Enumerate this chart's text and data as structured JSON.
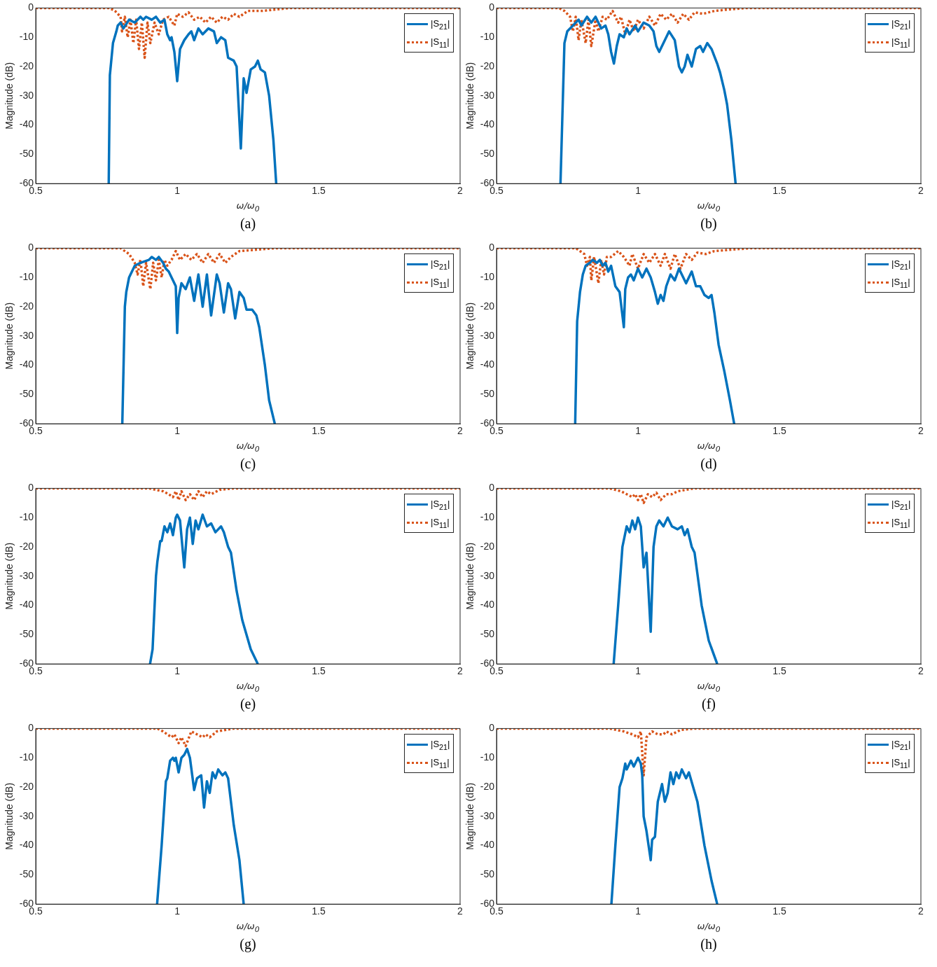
{
  "chart_data": [
    {
      "type": "line",
      "xlabel": "ω/ω$_{0}$",
      "ylabel": "Magnitude (dB)",
      "annotations": [
        "(a)"
      ],
      "xlim": [
        0.5,
        2
      ],
      "xticks": [
        0.5,
        1,
        1.5,
        2
      ],
      "ylim": [
        -60,
        0
      ],
      "yticks": [
        -60,
        -50,
        -40,
        -30,
        -20,
        -10,
        0
      ],
      "grid": false,
      "legend": "top right",
      "series": [
        {
          "name": "|S$_{21}$|",
          "color": "#0072bd",
          "line_style": "solid",
          "x": [
            0.758,
            0.762,
            0.773,
            0.785,
            0.79,
            0.8,
            0.81,
            0.83,
            0.85,
            0.87,
            0.88,
            0.89,
            0.91,
            0.925,
            0.94,
            0.955,
            0.965,
            0.975,
            0.98,
            0.99,
            1.0,
            1.01,
            1.025,
            1.04,
            1.05,
            1.06,
            1.075,
            1.09,
            1.11,
            1.13,
            1.14,
            1.155,
            1.17,
            1.18,
            1.2,
            1.21,
            1.225,
            1.235,
            1.245,
            1.26,
            1.275,
            1.285,
            1.295,
            1.31,
            1.325,
            1.34,
            1.35
          ],
          "values": [
            -60,
            -23,
            -12,
            -8,
            -6,
            -5,
            -7,
            -4,
            -5,
            -3,
            -4,
            -3,
            -4,
            -3,
            -5,
            -4,
            -9,
            -11,
            -10,
            -15,
            -25,
            -14,
            -11,
            -9,
            -8,
            -11,
            -7,
            -9,
            -7,
            -8,
            -12,
            -10,
            -11,
            -17,
            -18,
            -20,
            -48,
            -24,
            -29,
            -21,
            -20,
            -18,
            -21,
            -22,
            -30,
            -45,
            -60
          ]
        },
        {
          "name": "|S$_{11}$|",
          "color": "#d95319",
          "line_style": "dotted",
          "x": [
            0.5,
            0.76,
            0.78,
            0.8,
            0.805,
            0.815,
            0.825,
            0.835,
            0.845,
            0.855,
            0.865,
            0.875,
            0.885,
            0.895,
            0.905,
            0.92,
            0.935,
            0.95,
            0.97,
            0.99,
            1.0,
            1.02,
            1.04,
            1.06,
            1.08,
            1.1,
            1.12,
            1.14,
            1.16,
            1.18,
            1.2,
            1.22,
            1.25,
            1.3,
            1.35,
            1.4,
            2
          ],
          "values": [
            0,
            0,
            -1,
            -3,
            -8,
            -3,
            -10,
            -4,
            -12,
            -4,
            -14,
            -5,
            -17,
            -5,
            -12,
            -5,
            -9,
            -4,
            -3,
            -6,
            -2,
            -3,
            -1.5,
            -4,
            -3,
            -5,
            -3,
            -5,
            -3,
            -4,
            -2,
            -3,
            -1,
            -1,
            -0.5,
            0,
            0
          ]
        }
      ]
    },
    {
      "type": "line",
      "xlabel": "ω/ω$_{0}$",
      "ylabel": "Magnitude (dB)",
      "annotations": [
        "(b)"
      ],
      "xlim": [
        0.5,
        2
      ],
      "xticks": [
        0.5,
        1,
        1.5,
        2
      ],
      "ylim": [
        -60,
        0
      ],
      "yticks": [
        -60,
        -50,
        -40,
        -30,
        -20,
        -10,
        0
      ],
      "grid": false,
      "legend": "top right",
      "series": [
        {
          "name": "|S$_{21}$|",
          "color": "#0072bd",
          "line_style": "solid",
          "x": [
            0.726,
            0.74,
            0.75,
            0.77,
            0.79,
            0.8,
            0.82,
            0.835,
            0.85,
            0.87,
            0.885,
            0.895,
            0.905,
            0.915,
            0.925,
            0.935,
            0.95,
            0.96,
            0.97,
            0.99,
            1.0,
            1.02,
            1.04,
            1.055,
            1.065,
            1.075,
            1.09,
            1.11,
            1.13,
            1.145,
            1.155,
            1.165,
            1.175,
            1.19,
            1.205,
            1.22,
            1.23,
            1.245,
            1.26,
            1.28,
            1.29,
            1.305,
            1.315,
            1.33,
            1.345
          ],
          "values": [
            -60,
            -12,
            -8,
            -6,
            -4,
            -6,
            -3,
            -5,
            -3,
            -7,
            -6,
            -9,
            -15,
            -19,
            -13,
            -9,
            -10,
            -7,
            -9,
            -6,
            -8,
            -5,
            -6,
            -8,
            -13,
            -15,
            -12,
            -8,
            -11,
            -20,
            -22,
            -20,
            -16,
            -20,
            -14,
            -13,
            -15,
            -12,
            -14,
            -19,
            -22,
            -28,
            -33,
            -45,
            -60
          ]
        },
        {
          "name": "|S$_{11}$|",
          "color": "#d95319",
          "line_style": "dotted",
          "x": [
            0.5,
            0.72,
            0.74,
            0.76,
            0.77,
            0.78,
            0.79,
            0.8,
            0.815,
            0.825,
            0.835,
            0.85,
            0.86,
            0.875,
            0.89,
            0.91,
            0.93,
            0.94,
            0.955,
            0.97,
            0.985,
            1.0,
            1.02,
            1.04,
            1.06,
            1.08,
            1.1,
            1.12,
            1.14,
            1.16,
            1.18,
            1.2,
            1.23,
            1.27,
            1.32,
            1.38,
            2
          ],
          "values": [
            0,
            0,
            -1,
            -3,
            -8,
            -3,
            -11,
            -4,
            -12,
            -4,
            -13,
            -4,
            -8,
            -3,
            -4,
            -1,
            -5,
            -3,
            -9,
            -4,
            -8,
            -4,
            -7,
            -3,
            -6,
            -2,
            -4,
            -2,
            -5,
            -2,
            -4,
            -1.5,
            -2,
            -1,
            -0.5,
            0,
            0
          ]
        }
      ]
    },
    {
      "type": "line",
      "xlabel": "ω/ω$_{0}$",
      "ylabel": "Magnitude (dB)",
      "annotations": [
        "(c)"
      ],
      "xlim": [
        0.5,
        2
      ],
      "xticks": [
        0.5,
        1,
        1.5,
        2
      ],
      "ylim": [
        -60,
        0
      ],
      "yticks": [
        -60,
        -50,
        -40,
        -30,
        -20,
        -10,
        0
      ],
      "grid": false,
      "legend": "top right",
      "series": [
        {
          "name": "|S$_{21}$|",
          "color": "#0072bd",
          "line_style": "solid",
          "x": [
            0.806,
            0.815,
            0.82,
            0.83,
            0.835,
            0.85,
            0.87,
            0.9,
            0.91,
            0.925,
            0.935,
            0.95,
            0.96,
            0.97,
            0.99,
            0.995,
            1.0,
            1.005,
            1.015,
            1.03,
            1.045,
            1.06,
            1.075,
            1.09,
            1.105,
            1.12,
            1.14,
            1.15,
            1.165,
            1.18,
            1.19,
            1.205,
            1.22,
            1.235,
            1.245,
            1.265,
            1.28,
            1.29,
            1.31,
            1.325,
            1.345
          ],
          "values": [
            -60,
            -20,
            -15,
            -10,
            -9,
            -6,
            -5,
            -4,
            -3,
            -4,
            -3,
            -5,
            -7,
            -8,
            -12,
            -13,
            -29,
            -17,
            -12,
            -14,
            -10,
            -18,
            -9,
            -20,
            -9,
            -23,
            -9,
            -12,
            -22,
            -12,
            -14,
            -24,
            -15,
            -17,
            -21,
            -21,
            -23,
            -27,
            -40,
            -52,
            -60
          ]
        },
        {
          "name": "|S$_{11}$|",
          "color": "#d95319",
          "line_style": "dotted",
          "x": [
            0.5,
            0.8,
            0.83,
            0.85,
            0.86,
            0.87,
            0.88,
            0.89,
            0.905,
            0.915,
            0.925,
            0.935,
            0.945,
            0.955,
            0.965,
            0.98,
            0.995,
            1.01,
            1.03,
            1.05,
            1.07,
            1.09,
            1.11,
            1.13,
            1.15,
            1.17,
            1.19,
            1.22,
            1.28,
            1.35,
            2
          ],
          "values": [
            0,
            0,
            -2,
            -5,
            -9,
            -4,
            -13,
            -5,
            -14,
            -5,
            -11,
            -4,
            -10,
            -4,
            -6,
            -4,
            -1,
            -4,
            -2,
            -4,
            -2,
            -5,
            -2,
            -5,
            -2,
            -5,
            -3,
            -1,
            -0.5,
            0,
            0
          ]
        }
      ]
    },
    {
      "type": "line",
      "xlabel": "ω/ω$_{0}$",
      "ylabel": "Magnitude (dB)",
      "annotations": [
        "(d)"
      ],
      "xlim": [
        0.5,
        2
      ],
      "xticks": [
        0.5,
        1,
        1.5,
        2
      ],
      "ylim": [
        -60,
        0
      ],
      "yticks": [
        -60,
        -50,
        -40,
        -30,
        -20,
        -10,
        0
      ],
      "grid": false,
      "legend": "top right",
      "series": [
        {
          "name": "|S$_{21}$|",
          "color": "#0072bd",
          "line_style": "solid",
          "x": [
            0.778,
            0.785,
            0.795,
            0.805,
            0.815,
            0.83,
            0.84,
            0.855,
            0.865,
            0.875,
            0.885,
            0.895,
            0.905,
            0.92,
            0.935,
            0.95,
            0.955,
            0.965,
            0.975,
            0.985,
            1.0,
            1.015,
            1.03,
            1.045,
            1.06,
            1.07,
            1.08,
            1.09,
            1.1,
            1.115,
            1.13,
            1.145,
            1.16,
            1.17,
            1.19,
            1.205,
            1.22,
            1.235,
            1.25,
            1.26,
            1.27,
            1.285,
            1.305,
            1.325,
            1.34
          ],
          "values": [
            -60,
            -25,
            -15,
            -9,
            -6,
            -5,
            -4,
            -5,
            -4,
            -6,
            -5,
            -8,
            -6,
            -13,
            -15,
            -27,
            -14,
            -10,
            -9,
            -11,
            -7,
            -10,
            -7,
            -10,
            -15,
            -19,
            -16,
            -18,
            -13,
            -9,
            -11,
            -7,
            -10,
            -12,
            -8,
            -13,
            -13,
            -16,
            -17,
            -16,
            -22,
            -33,
            -42,
            -52,
            -60
          ]
        },
        {
          "name": "|S$_{11}$|",
          "color": "#d95319",
          "line_style": "dotted",
          "x": [
            0.5,
            0.78,
            0.81,
            0.82,
            0.83,
            0.835,
            0.845,
            0.86,
            0.87,
            0.88,
            0.89,
            0.905,
            0.93,
            0.95,
            0.97,
            0.98,
            1.0,
            1.02,
            1.04,
            1.06,
            1.08,
            1.095,
            1.115,
            1.13,
            1.15,
            1.17,
            1.19,
            1.21,
            1.24,
            1.27,
            1.33,
            1.4,
            2
          ],
          "values": [
            0,
            0,
            -2,
            -6,
            -3,
            -11,
            -3,
            -12,
            -4,
            -9,
            -3,
            -3,
            -1,
            -3,
            -6,
            -2,
            -7,
            -2,
            -5,
            -2,
            -6,
            -2,
            -7,
            -2,
            -7,
            -2,
            -4,
            -1.5,
            -2,
            -1,
            -0.5,
            0,
            0
          ]
        }
      ]
    },
    {
      "type": "line",
      "xlabel": "ω/ω$_{0}$",
      "ylabel": "Magnitude (dB)",
      "annotations": [
        "(e)"
      ],
      "xlim": [
        0.5,
        2
      ],
      "xticks": [
        0.5,
        1,
        1.5,
        2
      ],
      "ylim": [
        -60,
        0
      ],
      "yticks": [
        -60,
        -50,
        -40,
        -30,
        -20,
        -10,
        0
      ],
      "grid": false,
      "legend": "top right",
      "series": [
        {
          "name": "|S$_{21}$|",
          "color": "#0072bd",
          "line_style": "solid",
          "x": [
            0.904,
            0.913,
            0.925,
            0.93,
            0.94,
            0.945,
            0.955,
            0.965,
            0.975,
            0.985,
            0.995,
            1.0,
            1.01,
            1.025,
            1.035,
            1.045,
            1.055,
            1.065,
            1.075,
            1.09,
            1.105,
            1.12,
            1.135,
            1.155,
            1.165,
            1.18,
            1.19,
            1.21,
            1.23,
            1.26,
            1.285
          ],
          "values": [
            -60,
            -55,
            -30,
            -25,
            -18,
            -18,
            -13,
            -15,
            -12,
            -16,
            -10,
            -9,
            -11,
            -27,
            -14,
            -10,
            -19,
            -11,
            -14,
            -9,
            -13,
            -12,
            -15,
            -13,
            -15,
            -20,
            -22,
            -35,
            -45,
            -55,
            -60
          ]
        },
        {
          "name": "|S$_{11}$|",
          "color": "#d95319",
          "line_style": "dotted",
          "x": [
            0.5,
            0.9,
            0.95,
            0.97,
            0.985,
            0.995,
            1.005,
            1.015,
            1.03,
            1.045,
            1.06,
            1.075,
            1.09,
            1.105,
            1.12,
            1.15,
            1.2,
            2
          ],
          "values": [
            0,
            0,
            -1,
            -2,
            -3,
            -1,
            -4,
            -1,
            -4,
            -2,
            -4,
            -1,
            -3,
            -1,
            -2,
            -0.5,
            0,
            0
          ]
        }
      ]
    },
    {
      "type": "line",
      "xlabel": "ω/ω$_{0}$",
      "ylabel": "Magnitude (dB)",
      "annotations": [
        "(f)"
      ],
      "xlim": [
        0.5,
        2
      ],
      "xticks": [
        0.5,
        1,
        1.5,
        2
      ],
      "ylim": [
        -60,
        0
      ],
      "yticks": [
        -60,
        -50,
        -40,
        -30,
        -20,
        -10,
        0
      ],
      "grid": false,
      "legend": "top right",
      "series": [
        {
          "name": "|S$_{21}$|",
          "color": "#0072bd",
          "line_style": "solid",
          "x": [
            0.914,
            0.93,
            0.945,
            0.96,
            0.97,
            0.98,
            0.99,
            1.0,
            1.01,
            1.02,
            1.03,
            1.04,
            1.045,
            1.055,
            1.065,
            1.075,
            1.09,
            1.105,
            1.12,
            1.14,
            1.155,
            1.165,
            1.175,
            1.19,
            1.2,
            1.225,
            1.25,
            1.28
          ],
          "values": [
            -60,
            -40,
            -20,
            -13,
            -15,
            -11,
            -14,
            -10,
            -13,
            -27,
            -22,
            -40,
            -49,
            -20,
            -13,
            -11,
            -13,
            -10,
            -13,
            -14,
            -13,
            -16,
            -14,
            -20,
            -22,
            -40,
            -52,
            -60
          ]
        },
        {
          "name": "|S$_{11}$|",
          "color": "#d95319",
          "line_style": "dotted",
          "x": [
            0.5,
            0.9,
            0.94,
            0.96,
            0.98,
            0.99,
            1.0,
            1.01,
            1.02,
            1.035,
            1.05,
            1.065,
            1.08,
            1.1,
            1.12,
            1.14,
            1.2,
            2
          ],
          "values": [
            0,
            0,
            -1,
            -2,
            -3,
            -2,
            -4,
            -2,
            -5,
            -2,
            -3,
            -1.5,
            -4,
            -2,
            -2,
            -1,
            0,
            0
          ]
        }
      ]
    },
    {
      "type": "line",
      "xlabel": "ω/ω$_{0}$",
      "ylabel": "Magnitude (dB)",
      "annotations": [
        "(g)"
      ],
      "xlim": [
        0.5,
        2
      ],
      "xticks": [
        0.5,
        1,
        1.5,
        2
      ],
      "ylim": [
        -60,
        0
      ],
      "yticks": [
        -60,
        -50,
        -40,
        -30,
        -20,
        -10,
        0
      ],
      "grid": false,
      "legend": "top right",
      "series": [
        {
          "name": "|S$_{21}$|",
          "color": "#0072bd",
          "line_style": "solid",
          "x": [
            0.929,
            0.945,
            0.96,
            0.965,
            0.975,
            0.985,
            0.99,
            0.995,
            1.005,
            1.015,
            1.025,
            1.035,
            1.045,
            1.06,
            1.07,
            1.085,
            1.095,
            1.105,
            1.115,
            1.125,
            1.135,
            1.145,
            1.16,
            1.17,
            1.18,
            1.2,
            1.22,
            1.235
          ],
          "values": [
            -60,
            -40,
            -18,
            -17,
            -11,
            -10,
            -11,
            -10,
            -15,
            -10,
            -9,
            -7,
            -10,
            -21,
            -17,
            -16,
            -27,
            -18,
            -22,
            -15,
            -17,
            -14,
            -16,
            -15,
            -17,
            -33,
            -45,
            -60
          ]
        },
        {
          "name": "|S$_{11}$|",
          "color": "#d95319",
          "line_style": "dotted",
          "x": [
            0.5,
            0.93,
            0.95,
            0.98,
            0.99,
            1.005,
            1.015,
            1.03,
            1.05,
            1.07,
            1.09,
            1.1,
            1.115,
            1.14,
            1.2,
            2
          ],
          "values": [
            0,
            0,
            -1,
            -3,
            -2,
            -5,
            -3,
            -6,
            -1,
            -2,
            -3,
            -2,
            -3,
            -1,
            0,
            0
          ]
        }
      ]
    },
    {
      "type": "line",
      "xlabel": "ω/ω$_{0}$",
      "ylabel": "Magnitude (dB)",
      "annotations": [
        "(h)"
      ],
      "xlim": [
        0.5,
        2
      ],
      "xticks": [
        0.5,
        1,
        1.5,
        2
      ],
      "ylim": [
        -60,
        0
      ],
      "yticks": [
        -60,
        -50,
        -40,
        -30,
        -20,
        -10,
        0
      ],
      "grid": false,
      "legend": "top right",
      "series": [
        {
          "name": "|S$_{21}$|",
          "color": "#0072bd",
          "line_style": "solid",
          "x": [
            0.906,
            0.92,
            0.935,
            0.945,
            0.955,
            0.96,
            0.975,
            0.985,
            1.0,
            1.01,
            1.015,
            1.02,
            1.03,
            1.045,
            1.05,
            1.06,
            1.07,
            1.085,
            1.095,
            1.105,
            1.115,
            1.125,
            1.135,
            1.145,
            1.155,
            1.17,
            1.18,
            1.195,
            1.21,
            1.235,
            1.26,
            1.28
          ],
          "values": [
            -60,
            -40,
            -20,
            -17,
            -12,
            -14,
            -11,
            -13,
            -10,
            -12,
            -16,
            -30,
            -35,
            -45,
            -38,
            -37,
            -25,
            -19,
            -25,
            -22,
            -15,
            -19,
            -15,
            -17,
            -14,
            -17,
            -15,
            -20,
            -25,
            -40,
            -52,
            -60
          ]
        },
        {
          "name": "|S$_{11}$|",
          "color": "#d95319",
          "line_style": "dotted",
          "x": [
            0.5,
            0.9,
            0.95,
            0.98,
            1.0,
            1.01,
            1.02,
            1.03,
            1.05,
            1.07,
            1.09,
            1.1,
            1.12,
            1.15,
            1.2,
            2
          ],
          "values": [
            0,
            0,
            -1,
            -2,
            -3,
            -1,
            -16,
            -3,
            -1,
            -2,
            -2,
            -1,
            -2,
            -0.5,
            0,
            0
          ]
        }
      ]
    }
  ]
}
